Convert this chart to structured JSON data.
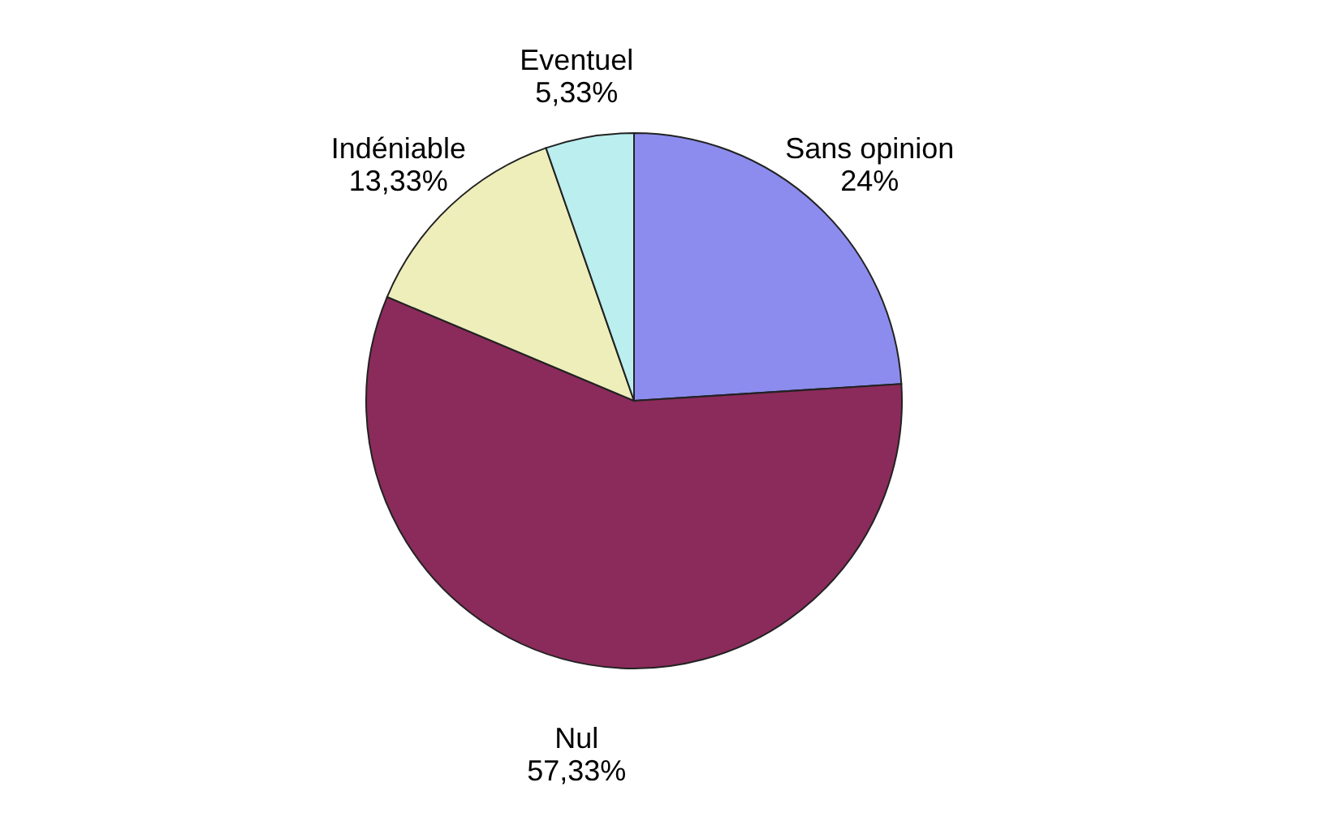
{
  "chart_data": {
    "type": "pie",
    "categories": [
      "Sans opinion",
      "Nul",
      "Indéniable",
      "Eventuel"
    ],
    "values": [
      24,
      57.33,
      13.33,
      5.33
    ],
    "value_labels": [
      "24%",
      "57,33%",
      "13,33%",
      "5,33%"
    ],
    "colors": [
      "#8c8cee",
      "#8b2b5b",
      "#eeeebb",
      "#bbeeee"
    ],
    "legend": false
  }
}
